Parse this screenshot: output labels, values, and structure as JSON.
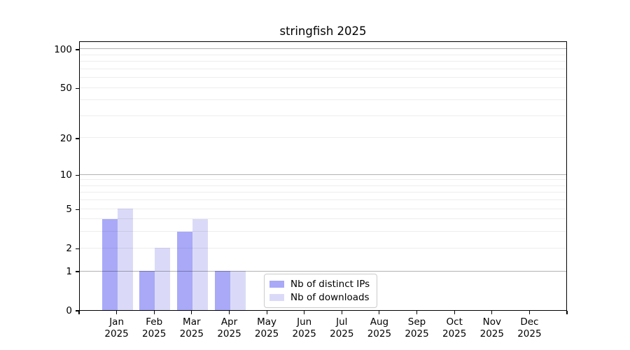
{
  "title": "stringfish 2025",
  "legend": {
    "items": [
      {
        "label": "Nb of distinct IPs",
        "key": "ips"
      },
      {
        "label": "Nb of downloads",
        "key": "downloads"
      }
    ]
  },
  "colors": {
    "ips": "#a9a9f8",
    "downloads": "#dadaf8",
    "grid_major": "rgba(0,0,0,0.30)",
    "grid_minor": "rgba(0,0,0,0.07)",
    "axis": "#000000"
  },
  "chart_data": {
    "type": "bar",
    "title": "stringfish 2025",
    "categories": [
      "Jan",
      "Feb",
      "Mar",
      "Apr",
      "May",
      "Jun",
      "Jul",
      "Aug",
      "Sep",
      "Oct",
      "Nov",
      "Dec"
    ],
    "year": "2025",
    "series": [
      {
        "name": "Nb of distinct IPs",
        "key": "ips",
        "values": [
          4,
          1,
          3,
          1,
          0,
          0,
          0,
          0,
          0,
          0,
          0,
          0
        ]
      },
      {
        "name": "Nb of downloads",
        "key": "downloads",
        "values": [
          5,
          2,
          4,
          1,
          0,
          0,
          0,
          0,
          0,
          0,
          0,
          0
        ]
      }
    ],
    "yscale": "log1p",
    "ylim": [
      0,
      116
    ],
    "yticks": [
      0,
      1,
      2,
      5,
      10,
      20,
      50,
      100
    ],
    "grid_major": [
      1,
      10,
      100
    ],
    "grid_minor": [
      2,
      3,
      4,
      5,
      6,
      7,
      8,
      9,
      20,
      30,
      40,
      50,
      60,
      70,
      80,
      90
    ],
    "grid_over_bars": true,
    "legend_position": "lower center-right"
  }
}
